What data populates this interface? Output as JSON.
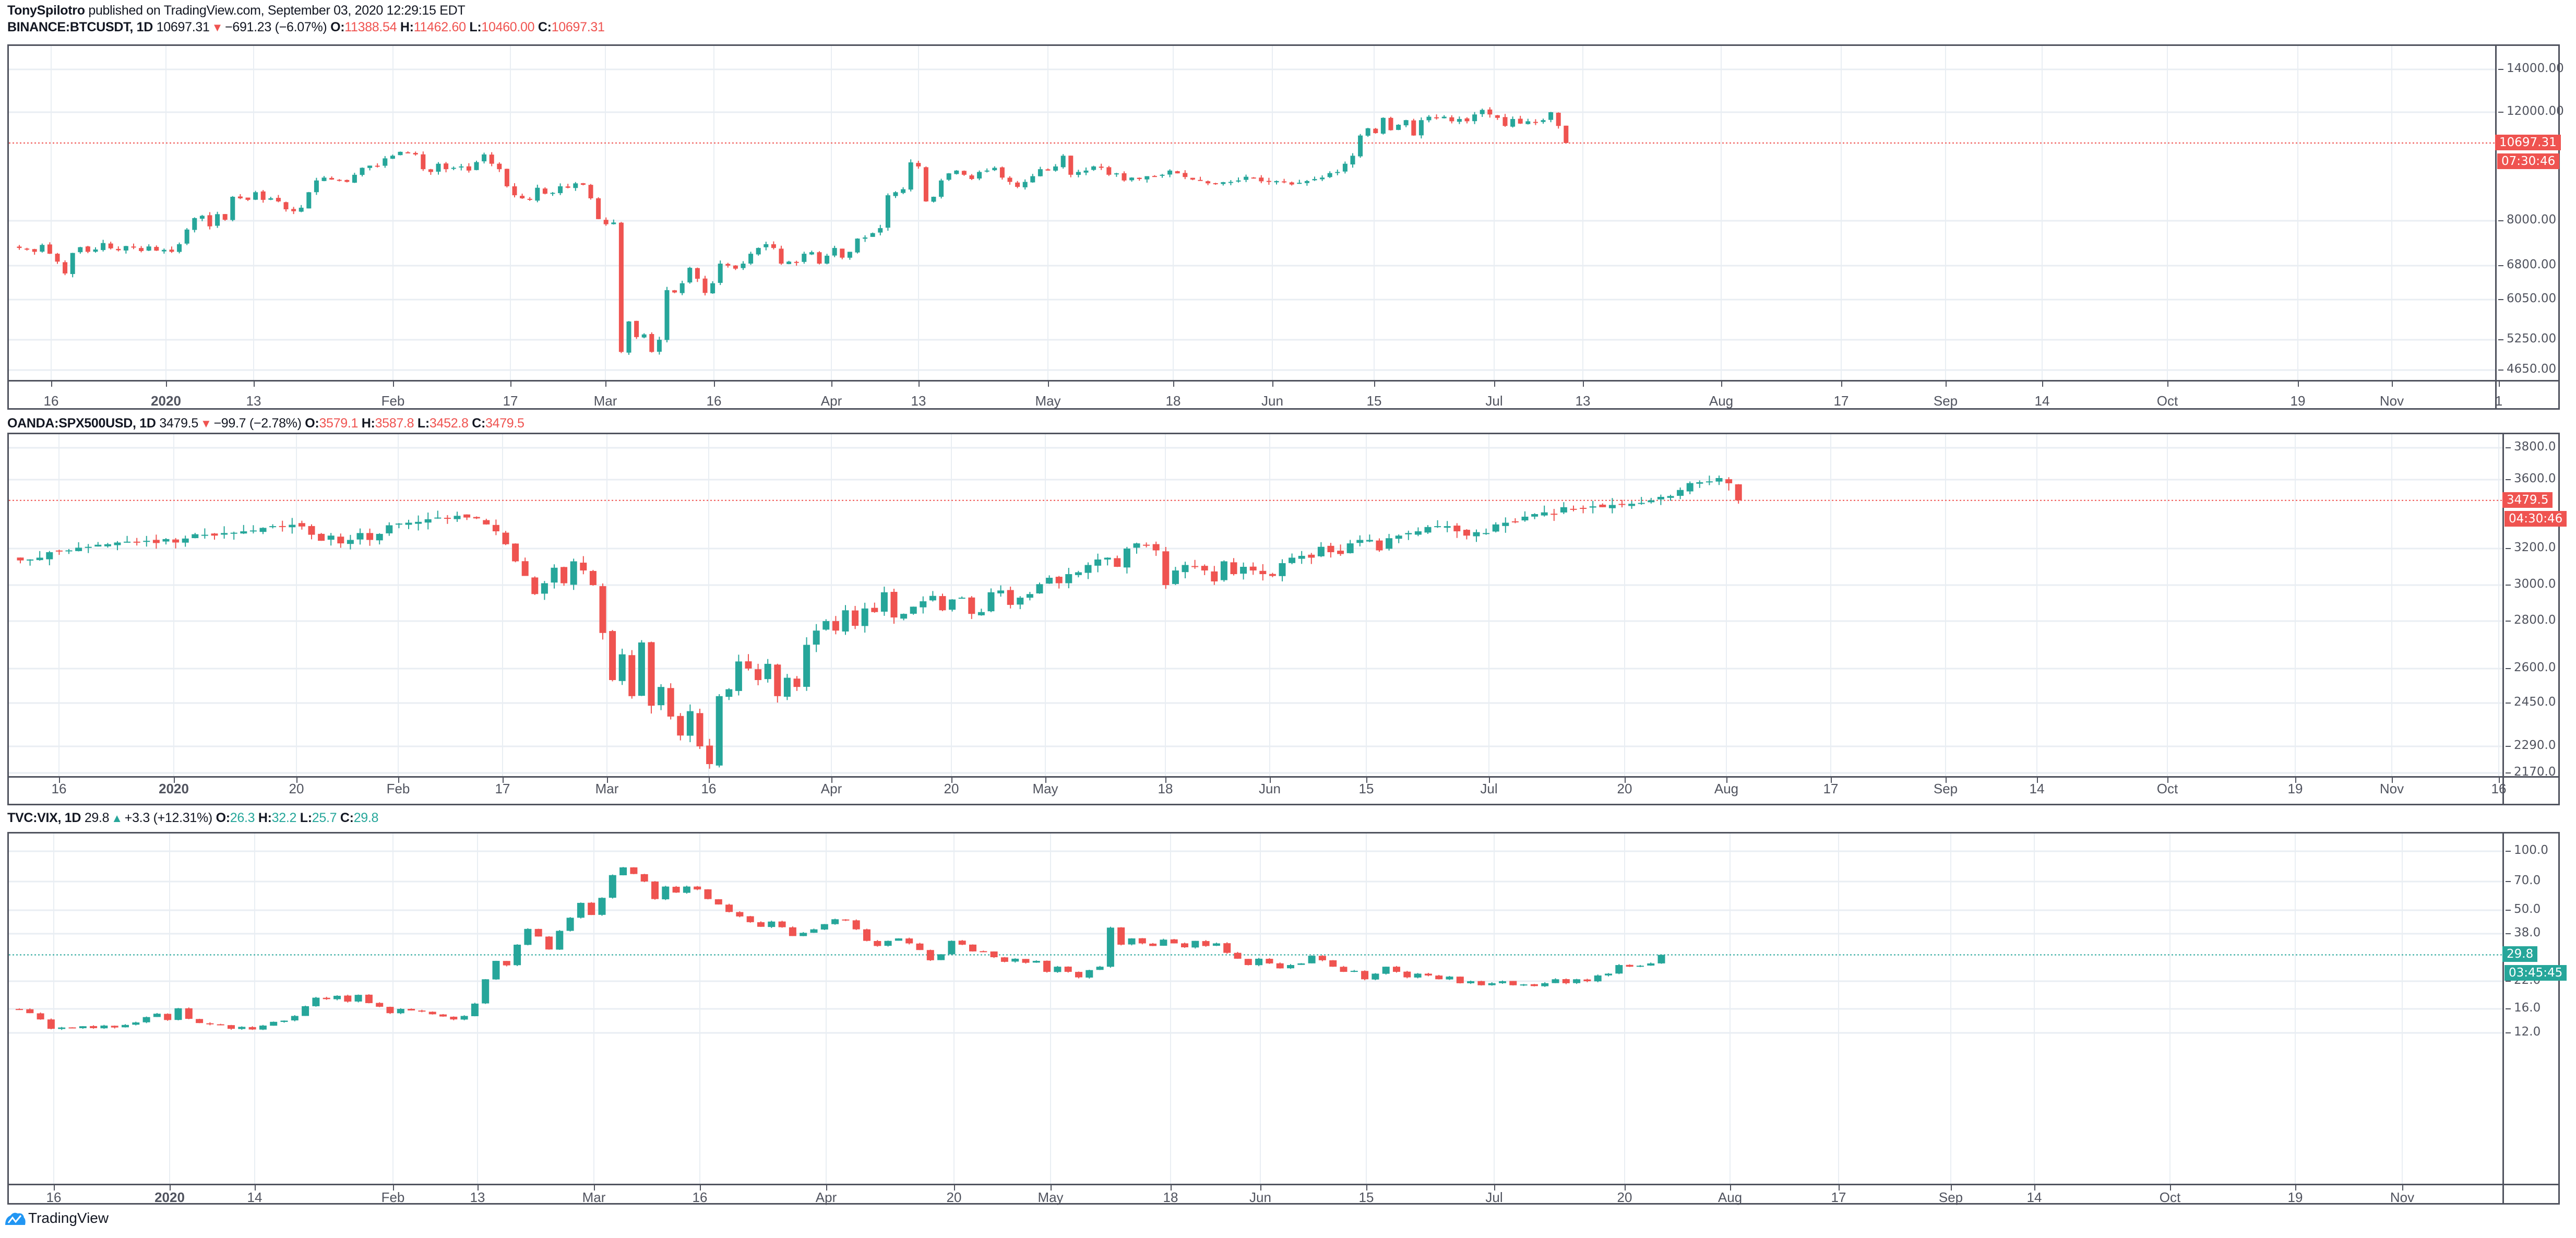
{
  "header": {
    "author": "TonySpilotro",
    "published_text": " published on TradingView.com, September 03, 2020 12:29:15 EDT"
  },
  "colors": {
    "up": "#26a69a",
    "down": "#ef5350",
    "grid": "#e9eef3",
    "axis": "#50535e"
  },
  "panes": [
    {
      "id": "btc",
      "symbol": "BINANCE:BTCUSDT, 1D",
      "last": "10697.31",
      "direction": "down",
      "arrow": "▼",
      "change": "−691.23 (−6.07%)",
      "o": "11388.54",
      "h": "11462.60",
      "l": "10460.00",
      "c": "10697.31",
      "price_tag": "10697.31",
      "countdown": "07:30:46"
    },
    {
      "id": "spx",
      "symbol": "OANDA:SPX500USD, 1D",
      "last": "3479.5",
      "direction": "down",
      "arrow": "▼",
      "change": "−99.7 (−2.78%)",
      "o": "3579.1",
      "h": "3587.8",
      "l": "3452.8",
      "c": "3479.5",
      "price_tag": "3479.5",
      "countdown": "04:30:46"
    },
    {
      "id": "vix",
      "symbol": "TVC:VIX, 1D",
      "last": "29.8",
      "direction": "up",
      "arrow": "▲",
      "change": "+3.3 (+12.31%)",
      "o": "26.3",
      "h": "32.2",
      "l": "25.7",
      "c": "29.8",
      "price_tag": "29.8",
      "countdown": "03:45:45"
    }
  ],
  "footer": {
    "logo_text": "TradingView"
  },
  "chart_data": [
    {
      "type": "candlestick",
      "title": "BINANCE:BTCUSDT, 1D",
      "scale": "log",
      "pane": {
        "top": 88,
        "bottom": 725,
        "axis_x": 4778,
        "label_y": 762,
        "plot_left": 17
      },
      "yticks": [
        {
          "label": "14000.00",
          "value": 14000,
          "y": 130
        },
        {
          "label": "12000.00",
          "value": 12000,
          "y": 212
        },
        {
          "label": "8000.00",
          "value": 8000,
          "y": 420
        },
        {
          "label": "6800.00",
          "value": 6800,
          "y": 506
        },
        {
          "label": "6050.00",
          "value": 6050,
          "y": 571
        },
        {
          "label": "5250.00",
          "value": 5250,
          "y": 648
        },
        {
          "label": "4650.00",
          "value": 4650,
          "y": 706
        }
      ],
      "xticks": [
        {
          "label": "16",
          "x": 95
        },
        {
          "label": "2020",
          "x": 315,
          "bold": true
        },
        {
          "label": "13",
          "x": 483
        },
        {
          "label": "Feb",
          "x": 750
        },
        {
          "label": "17",
          "x": 975
        },
        {
          "label": "Mar",
          "x": 1157
        },
        {
          "label": "16",
          "x": 1365
        },
        {
          "label": "Apr",
          "x": 1590
        },
        {
          "label": "13",
          "x": 1757
        },
        {
          "label": "May",
          "x": 2005
        },
        {
          "label": "18",
          "x": 2245
        },
        {
          "label": "Jun",
          "x": 2435
        },
        {
          "label": "15",
          "x": 2630
        },
        {
          "label": "Jul",
          "x": 2860
        },
        {
          "label": "13",
          "x": 3030
        },
        {
          "label": "Aug",
          "x": 3295
        },
        {
          "label": "17",
          "x": 3525
        },
        {
          "label": "Sep",
          "x": 3725
        },
        {
          "label": "14",
          "x": 3910
        },
        {
          "label": "Oct",
          "x": 4150
        },
        {
          "label": "19",
          "x": 4400
        },
        {
          "label": "Nov",
          "x": 4580
        },
        {
          "label": "1",
          "x": 4785
        }
      ],
      "x_start": 20,
      "x_step": 14.6,
      "candle_w": 9,
      "closes": [
        7250,
        7220,
        7150,
        7330,
        7100,
        6900,
        6620,
        7120,
        7270,
        7150,
        7210,
        7380,
        7240,
        7190,
        7300,
        7260,
        7170,
        7290,
        7180,
        7200,
        7150,
        7350,
        7750,
        8080,
        8150,
        7840,
        8200,
        8030,
        8750,
        8700,
        8650,
        8900,
        8650,
        8700,
        8600,
        8350,
        8290,
        8400,
        8900,
        9300,
        9400,
        9330,
        9300,
        9250,
        9500,
        9750,
        9830,
        9800,
        10100,
        10200,
        10350,
        10300,
        10250,
        9700,
        9600,
        9900,
        9700,
        9750,
        9800,
        9650,
        9960,
        10250,
        9900,
        9700,
        9100,
        8800,
        8700,
        8650,
        9050,
        8850,
        8880,
        9100,
        9050,
        9200,
        9150,
        8700,
        8050,
        7900,
        7950,
        5000,
        5600,
        5300,
        5350,
        5000,
        5250,
        6250,
        6200,
        6400,
        6750,
        6500,
        6190,
        6400,
        6850,
        6800,
        6730,
        6850,
        7100,
        7250,
        7350,
        7250,
        6850,
        6900,
        6880,
        7100,
        7140,
        6850,
        7050,
        7250,
        7000,
        7150,
        7500,
        7530,
        7650,
        7790,
        8800,
        8900,
        9000,
        9950,
        9800,
        8600,
        8750,
        9300,
        9550,
        9650,
        9500,
        9350,
        9600,
        9650,
        9750,
        9400,
        9250,
        9080,
        9250,
        9450,
        9700,
        9650,
        9800,
        10200,
        9500,
        9600,
        9650,
        9800,
        9750,
        9500,
        9550,
        9300,
        9400,
        9350,
        9450,
        9450,
        9500,
        9650,
        9550,
        9420,
        9330,
        9300,
        9200,
        9180,
        9240,
        9250,
        9300,
        9430,
        9400,
        9270,
        9250,
        9280,
        9240,
        9160,
        9220,
        9280,
        9350,
        9400,
        9560,
        9600,
        9900,
        10200,
        11000,
        11300,
        11100,
        11750,
        11220,
        11450,
        11650,
        11000,
        11650,
        11800,
        11750,
        11800,
        11600,
        11700,
        11600,
        11900,
        12100,
        11900,
        11750,
        11400,
        11700,
        11500,
        11600,
        11550,
        11650,
        12000,
        11400,
        10697.31
      ]
    },
    {
      "type": "candlestick",
      "title": "OANDA:SPX500USD, 1D",
      "scale": "linear",
      "pane": {
        "top": 832,
        "bottom": 1484,
        "axis_x": 4792,
        "label_y": 1505,
        "plot_left": 17
      },
      "yticks": [
        {
          "label": "3800.0",
          "value": 3800,
          "y": 855
        },
        {
          "label": "3600.0",
          "value": 3600,
          "y": 916
        },
        {
          "label": "3200.0",
          "value": 3200,
          "y": 1048
        },
        {
          "label": "3000.0",
          "value": 3000,
          "y": 1118
        },
        {
          "label": "2800.0",
          "value": 2800,
          "y": 1187
        },
        {
          "label": "2600.0",
          "value": 2600,
          "y": 1278
        },
        {
          "label": "2450.0",
          "value": 2450,
          "y": 1344
        },
        {
          "label": "2290.0",
          "value": 2290,
          "y": 1427
        },
        {
          "label": "2170.0",
          "value": 2170,
          "y": 1478
        }
      ],
      "xticks": [
        {
          "label": "16",
          "x": 110
        },
        {
          "label": "2020",
          "x": 330,
          "bold": true
        },
        {
          "label": "20",
          "x": 565
        },
        {
          "label": "Feb",
          "x": 760
        },
        {
          "label": "17",
          "x": 960
        },
        {
          "label": "Mar",
          "x": 1160
        },
        {
          "label": "16",
          "x": 1355
        },
        {
          "label": "Apr",
          "x": 1590
        },
        {
          "label": "20",
          "x": 1820
        },
        {
          "label": "May",
          "x": 2000
        },
        {
          "label": "18",
          "x": 2230
        },
        {
          "label": "Jun",
          "x": 2430
        },
        {
          "label": "15",
          "x": 2615
        },
        {
          "label": "Jul",
          "x": 2850
        },
        {
          "label": "20",
          "x": 3110
        },
        {
          "label": "Aug",
          "x": 3305
        },
        {
          "label": "17",
          "x": 3505
        },
        {
          "label": "Sep",
          "x": 3725
        },
        {
          "label": "14",
          "x": 3900
        },
        {
          "label": "Oct",
          "x": 4150
        },
        {
          "label": "19",
          "x": 4395
        },
        {
          "label": "Nov",
          "x": 4580
        },
        {
          "label": "16",
          "x": 4785
        }
      ],
      "x_start": 22,
      "x_step": 18.6,
      "candle_w": 13,
      "closes": [
        3135,
        3140,
        3150,
        3180,
        3185,
        3190,
        3205,
        3210,
        3222,
        3225,
        3235,
        3240,
        3240,
        3245,
        3232,
        3255,
        3235,
        3258,
        3283,
        3280,
        3275,
        3290,
        3292,
        3300,
        3305,
        3320,
        3330,
        3325,
        3338,
        3328,
        3280,
        3245,
        3275,
        3230,
        3250,
        3290,
        3250,
        3285,
        3335,
        3345,
        3350,
        3355,
        3370,
        3380,
        3375,
        3390,
        3380,
        3375,
        3340,
        3300,
        3225,
        3130,
        3050,
        2950,
        3010,
        3095,
        3010,
        3130,
        3080,
        3000,
        2750,
        2550,
        2660,
        2480,
        2710,
        2440,
        2520,
        2400,
        2330,
        2420,
        2290,
        2210,
        2480,
        2510,
        2630,
        2600,
        2550,
        2620,
        2480,
        2560,
        2520,
        2700,
        2760,
        2800,
        2760,
        2860,
        2780,
        2870,
        2850,
        2960,
        2820,
        2840,
        2880,
        2910,
        2940,
        2860,
        2920,
        2930,
        2840,
        2850,
        2960,
        2970,
        2890,
        2930,
        2950,
        3005,
        3040,
        3010,
        3060,
        3070,
        3110,
        3140,
        3150,
        3100,
        3200,
        3230,
        3220,
        3190,
        3000,
        3080,
        3110,
        3100,
        3080,
        3020,
        3130,
        3060,
        3100,
        3080,
        3060,
        3050,
        3120,
        3150,
        3160,
        3150,
        3210,
        3180,
        3170,
        3230,
        3250,
        3250,
        3190,
        3260,
        3275,
        3290,
        3300,
        3325,
        3330,
        3330,
        3300,
        3275,
        3295,
        3290,
        3340,
        3350,
        3355,
        3385,
        3400,
        3410,
        3400,
        3440,
        3430,
        3435,
        3445,
        3440,
        3453,
        3455,
        3460,
        3465,
        3480,
        3500,
        3505,
        3540,
        3580,
        3585,
        3590,
        3610,
        3579,
        3479.5
      ]
    },
    {
      "type": "candlestick",
      "title": "TVC:VIX, 1D",
      "scale": "log",
      "pane": {
        "top": 1597,
        "bottom": 2265,
        "axis_x": 4792,
        "label_y": 2288,
        "plot_left": 17
      },
      "yticks": [
        {
          "label": "100.0",
          "value": 100,
          "y": 1628
        },
        {
          "label": "70.0",
          "value": 70,
          "y": 1686
        },
        {
          "label": "50.0",
          "value": 50,
          "y": 1741
        },
        {
          "label": "38.0",
          "value": 38,
          "y": 1786
        },
        {
          "label": "22.0",
          "value": 22,
          "y": 1877
        },
        {
          "label": "16.0",
          "value": 16,
          "y": 1930
        },
        {
          "label": "12.0",
          "value": 12,
          "y": 1976
        }
      ],
      "xticks": [
        {
          "label": "16",
          "x": 100
        },
        {
          "label": "2020",
          "x": 322,
          "bold": true
        },
        {
          "label": "14",
          "x": 485
        },
        {
          "label": "Feb",
          "x": 750
        },
        {
          "label": "13",
          "x": 912
        },
        {
          "label": "Mar",
          "x": 1135
        },
        {
          "label": "16",
          "x": 1338
        },
        {
          "label": "Apr",
          "x": 1580
        },
        {
          "label": "20",
          "x": 1825
        },
        {
          "label": "May",
          "x": 2010
        },
        {
          "label": "18",
          "x": 2240
        },
        {
          "label": "Jun",
          "x": 2412
        },
        {
          "label": "15",
          "x": 2615
        },
        {
          "label": "Jul",
          "x": 2860
        },
        {
          "label": "20",
          "x": 3110
        },
        {
          "label": "Aug",
          "x": 3312
        },
        {
          "label": "17",
          "x": 3520
        },
        {
          "label": "Sep",
          "x": 3735
        },
        {
          "label": "14",
          "x": 3895
        },
        {
          "label": "Oct",
          "x": 4155
        },
        {
          "label": "19",
          "x": 4395
        },
        {
          "label": "Nov",
          "x": 4600
        }
      ],
      "x_start": 20,
      "x_step": 20.3,
      "candle_w": 14,
      "closes": [
        15.9,
        15.2,
        14.1,
        12.6,
        12.8,
        12.7,
        13.0,
        12.7,
        13.1,
        12.8,
        13.2,
        13.6,
        14.5,
        15.1,
        14.0,
        16.1,
        14.2,
        13.5,
        13.3,
        13.2,
        12.6,
        12.9,
        12.5,
        13.1,
        13.7,
        13.9,
        14.7,
        16.5,
        18.2,
        17.9,
        18.6,
        17.4,
        18.8,
        17.1,
        16.4,
        15.2,
        16.0,
        15.7,
        15.5,
        15.0,
        14.6,
        14.1,
        14.7,
        17.0,
        22.5,
        27.8,
        26.4,
        33.5,
        40.2,
        36.8,
        31.7,
        39.3,
        45.8,
        54.5,
        47.3,
        57.8,
        75.5,
        82.7,
        76.5,
        70.0,
        57.0,
        66.0,
        61.5,
        66.0,
        63.8,
        57.0,
        53.5,
        49.0,
        46.5,
        43.5,
        41.2,
        43.8,
        41.0,
        37.0,
        38.4,
        40.0,
        42.5,
        45.0,
        44.5,
        40.0,
        35.0,
        33.0,
        35.0,
        36.0,
        34.0,
        31.5,
        28.0,
        30.0,
        35.0,
        33.5,
        31.0,
        31.0,
        29.0,
        27.5,
        28.5,
        27.2,
        27.8,
        24.5,
        26.0,
        24.5,
        23.0,
        25.0,
        26.0,
        40.8,
        33.5,
        36.0,
        34.0,
        33.0,
        35.5,
        34.0,
        32.5,
        35.0,
        33.0,
        34.0,
        30.5,
        28.5,
        26.5,
        28.5,
        27.0,
        25.5,
        26.5,
        27.0,
        29.5,
        28.0,
        26.0,
        24.5,
        24.8,
        22.5,
        24.0,
        26.0,
        24.5,
        23.0,
        24.0,
        23.5,
        22.5,
        23.2,
        21.5,
        22.0,
        21.0,
        21.5,
        22.0,
        21.0,
        21.2,
        20.8,
        21.5,
        22.5,
        21.5,
        22.5,
        22.0,
        23.5,
        24.0,
        26.5,
        26.0,
        26.3,
        27.0,
        29.8
      ]
    }
  ]
}
